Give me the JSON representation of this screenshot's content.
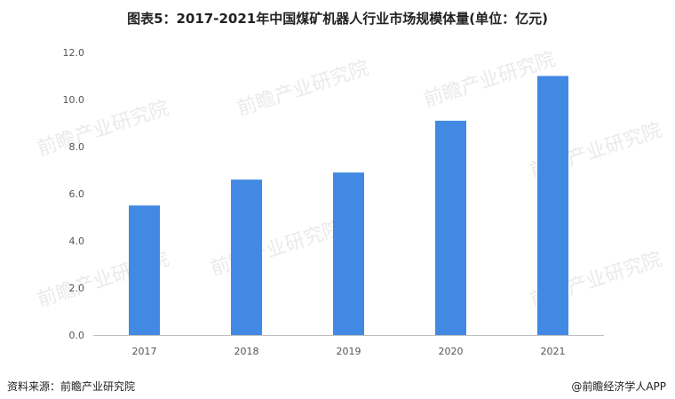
{
  "title": "图表5：2017-2021年中国煤矿机器人行业市场规模体量(单位：亿元)",
  "source": "资料来源：前瞻产业研究院",
  "credit": "@前瞻经济学人APP",
  "watermark": "前瞻产业研究院",
  "colors": {
    "bar": "#4289E3",
    "axis": "#bfbfbf"
  },
  "chart_data": {
    "type": "bar",
    "categories": [
      "2017",
      "2018",
      "2019",
      "2020",
      "2021"
    ],
    "values": [
      5.5,
      6.6,
      6.9,
      9.1,
      11.0
    ],
    "ylim": [
      0,
      12
    ],
    "yticks": [
      "0.0",
      "2.0",
      "4.0",
      "6.0",
      "8.0",
      "10.0",
      "12.0"
    ],
    "grid": false,
    "title": "图表5：2017-2021年中国煤矿机器人行业市场规模体量(单位：亿元)"
  }
}
